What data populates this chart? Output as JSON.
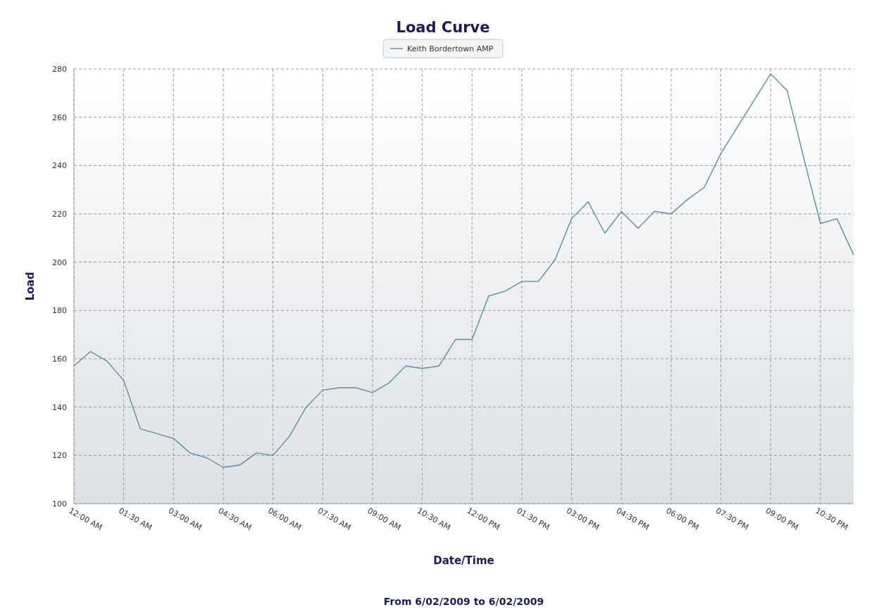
{
  "chart_data": {
    "type": "line",
    "title": "Load Curve",
    "xlabel": "Date/Time",
    "ylabel": "Load",
    "annotations": [
      "From 6/02/2009 to 6/02/2009"
    ],
    "x": [
      0,
      0.5,
      1,
      1.5,
      2,
      2.5,
      3,
      3.5,
      4,
      4.5,
      5,
      5.5,
      6,
      6.5,
      7,
      7.5,
      8,
      8.5,
      9,
      9.5,
      10,
      10.5,
      11,
      11.5,
      12,
      12.5,
      13,
      13.5,
      14,
      14.5,
      15,
      15.5,
      16,
      16.5,
      17,
      17.5,
      18,
      18.5,
      19,
      19.5,
      20,
      20.5,
      21,
      21.5,
      22,
      22.5,
      23,
      23.5
    ],
    "series": [
      {
        "name": "Keith Bordertown AMP",
        "color": "#5e8e9c",
        "values": [
          157,
          163,
          159,
          151,
          131,
          129,
          127,
          121,
          119,
          115,
          116,
          121,
          120,
          128,
          140,
          147,
          148,
          148,
          146,
          150,
          157,
          156,
          157,
          168,
          168,
          186,
          188,
          192,
          192,
          201,
          218,
          225,
          212,
          221,
          214,
          221,
          220,
          226,
          231,
          245,
          256,
          267,
          278,
          271,
          243,
          216,
          218,
          203
        ]
      }
    ],
    "xlim": [
      0,
      23.5
    ],
    "xticks": [
      {
        "value": 0,
        "label": "12:00 AM"
      },
      {
        "value": 1.5,
        "label": "01:30 AM"
      },
      {
        "value": 3,
        "label": "03:00 AM"
      },
      {
        "value": 4.5,
        "label": "04:30 AM"
      },
      {
        "value": 6,
        "label": "06:00 AM"
      },
      {
        "value": 7.5,
        "label": "07:30 AM"
      },
      {
        "value": 9,
        "label": "09:00 AM"
      },
      {
        "value": 10.5,
        "label": "10:30 AM"
      },
      {
        "value": 12,
        "label": "12:00 PM"
      },
      {
        "value": 13.5,
        "label": "01:30 PM"
      },
      {
        "value": 15,
        "label": "03:00 PM"
      },
      {
        "value": 16.5,
        "label": "04:30 PM"
      },
      {
        "value": 18,
        "label": "06:00 PM"
      },
      {
        "value": 19.5,
        "label": "07:30 PM"
      },
      {
        "value": 21,
        "label": "09:00 PM"
      },
      {
        "value": 22.5,
        "label": "10:30 PM"
      }
    ],
    "ylim": [
      100,
      280
    ],
    "yticks": [
      100,
      120,
      140,
      160,
      180,
      200,
      220,
      240,
      260,
      280
    ],
    "grid": true,
    "legend": "top",
    "marker": "none",
    "line_style": "solid"
  }
}
